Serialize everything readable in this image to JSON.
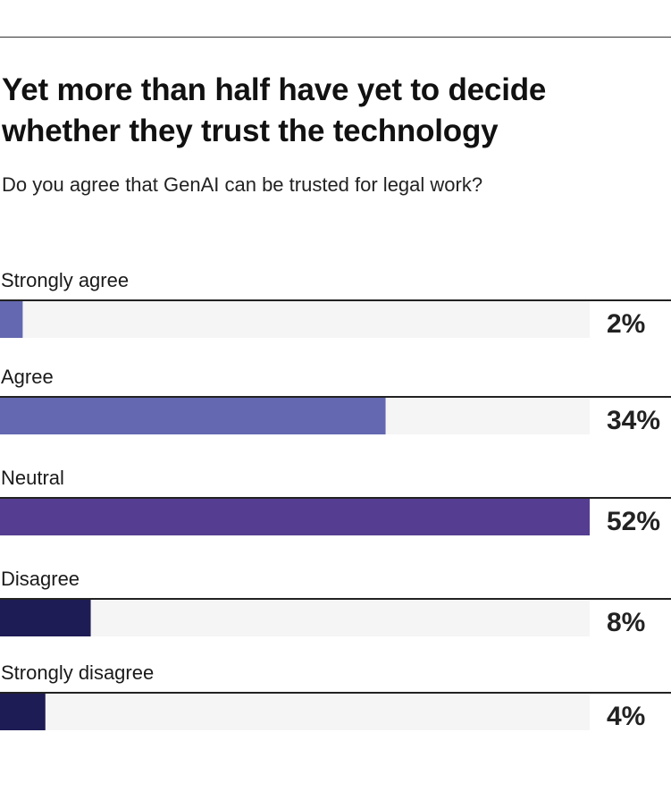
{
  "title": "Yet more than half have yet to decide whether they trust the technology",
  "subtitle": "Do you agree that GenAI can be trusted for legal work?",
  "chart_data": {
    "type": "bar",
    "orientation": "horizontal",
    "categories": [
      "Strongly agree",
      "Agree",
      "Neutral",
      "Disagree",
      "Strongly disagree"
    ],
    "values": [
      2,
      34,
      52,
      8,
      4
    ],
    "value_labels": [
      "2%",
      "34%",
      "52%",
      "8%",
      "4%"
    ],
    "xlim": [
      0,
      52
    ],
    "unit": "%",
    "colors": [
      "#6368b0",
      "#6368b0",
      "#553e91",
      "#1e1c54",
      "#1e1c54"
    ],
    "track_color": "#f5f5f5",
    "grid": false,
    "legend": "none"
  }
}
